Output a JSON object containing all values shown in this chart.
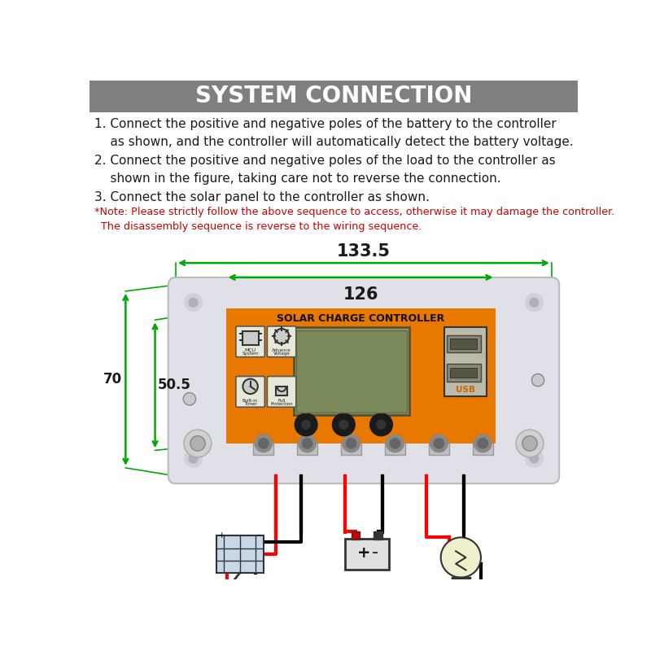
{
  "title": "SYSTEM CONNECTION",
  "title_bg": "#808080",
  "title_color": "#ffffff",
  "line1": "1. Connect the positive and negative poles of the battery to the controller\n    as shown, and the controller will automatically detect the battery voltage.",
  "line2": "2. Connect the positive and negative poles of the load to the controller as\n    shown in the figure, taking care not to reverse the connection.",
  "line3": "3. Connect the solar panel to the controller as shown.",
  "note": "*Note: Please strictly follow the above sequence to access, otherwise it may damage the controller.\n  The disassembly sequence is reverse to the wiring sequence.",
  "dim1": "133.5",
  "dim2": "126",
  "dim3": "70",
  "dim4": "50.5",
  "bg_color": "#ffffff",
  "orange_color": "#E87800",
  "green_color": "#00AA00",
  "text_color": "#1a1a1a",
  "note_color": "#CC0000",
  "ctrl_bg": "#e0e0e8",
  "ctrl_edge": "#bbbbbb"
}
